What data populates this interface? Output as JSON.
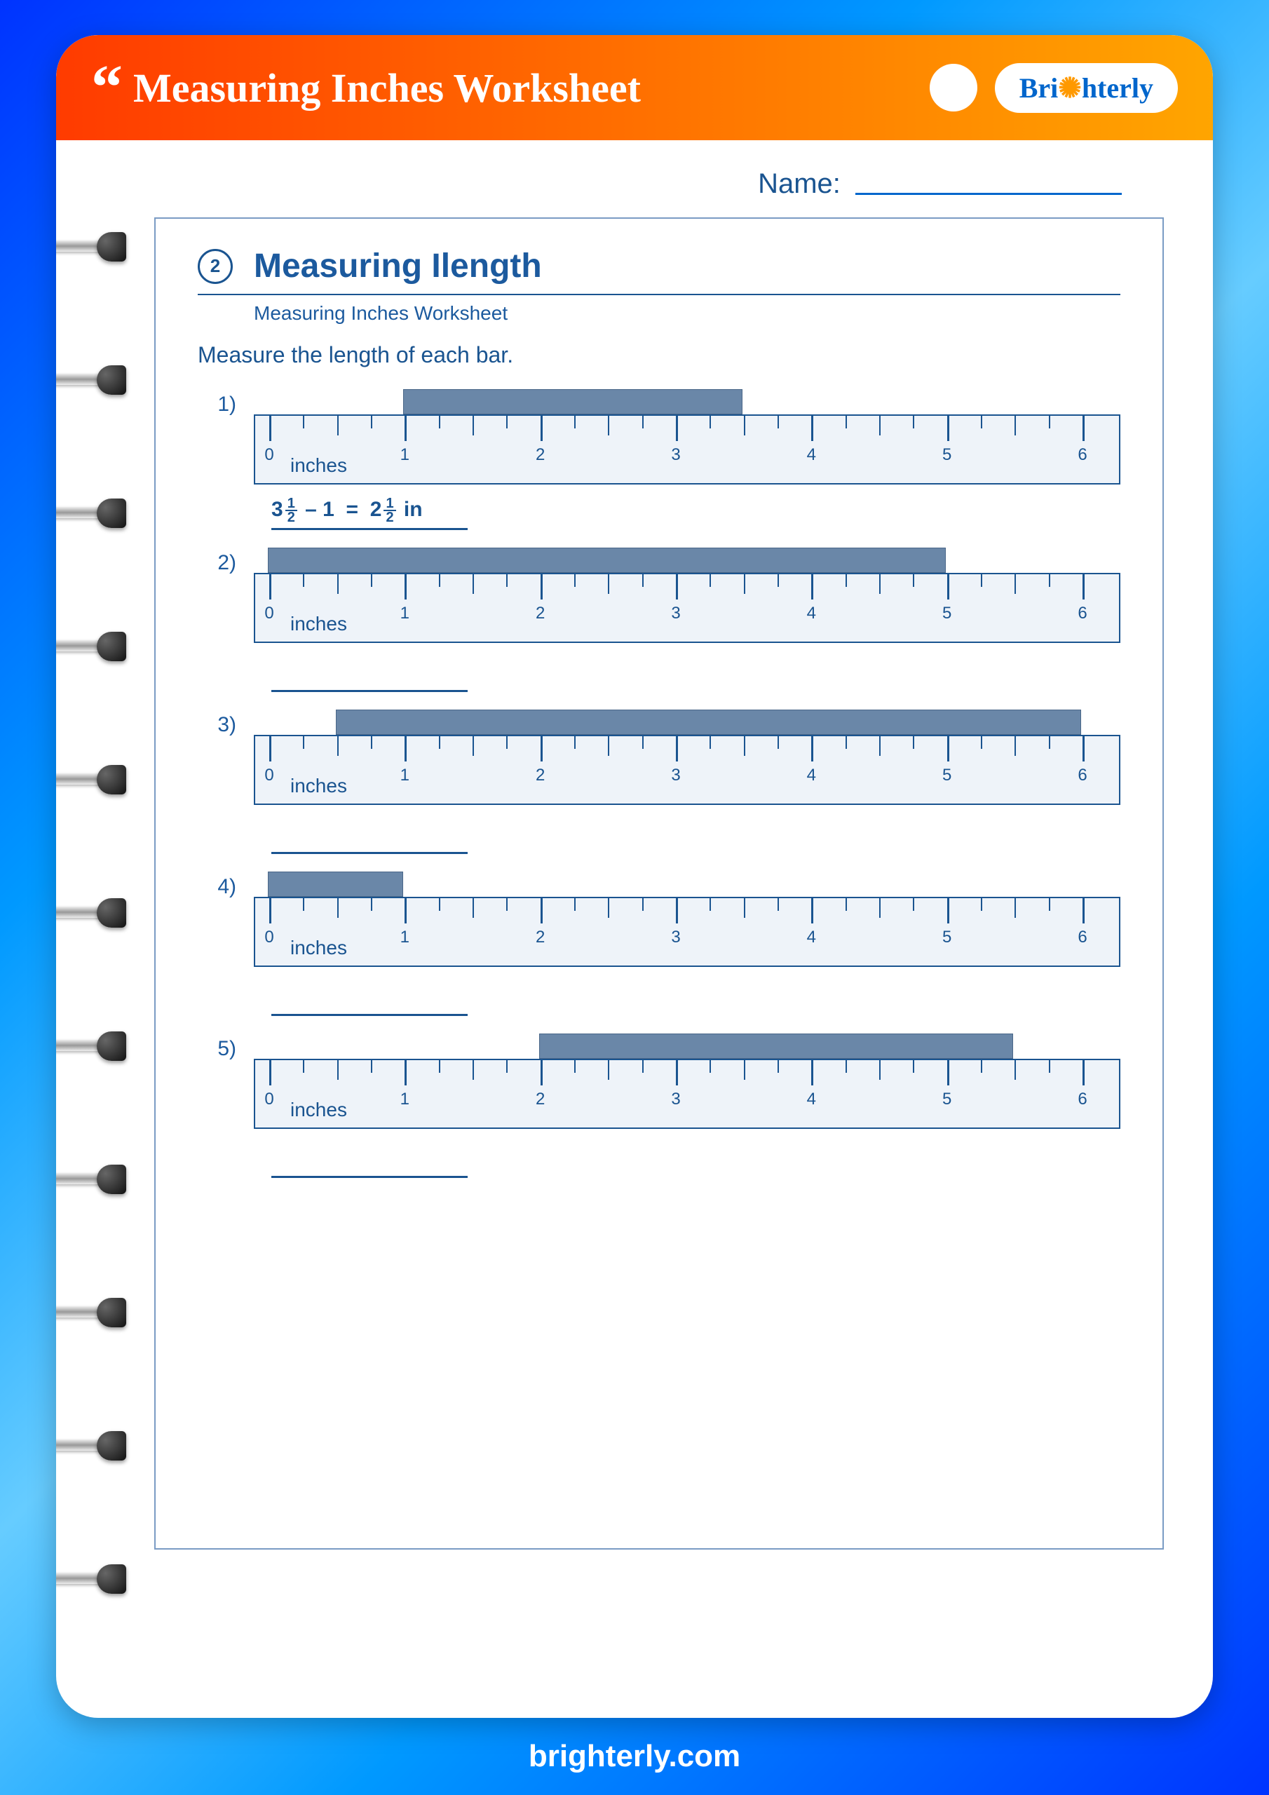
{
  "header": {
    "title": "Measuring Inches Worksheet",
    "brand": "Brighterly"
  },
  "name_label": "Name:",
  "section": {
    "number": "2",
    "title": "Measuring Ilength",
    "subtitle": "Measuring Inches Worksheet"
  },
  "instruction": "Measure the length of each bar.",
  "ruler": {
    "max_inches": 6,
    "labels": [
      "0",
      "1",
      "2",
      "3",
      "4",
      "5",
      "6"
    ],
    "unit_label": "inches",
    "background_color": "#eef3f9",
    "border_color": "#1a5490"
  },
  "bar_color": "#6a87a8",
  "problems": [
    {
      "num": "1)",
      "bar_start": 1.0,
      "bar_end": 3.5,
      "answered": true,
      "answer_parts": {
        "a_whole": "3",
        "a_num": "1",
        "a_den": "2",
        "minus": "– 1",
        "eq": "=",
        "b_whole": "2",
        "b_num": "1",
        "b_den": "2",
        "unit": "in"
      }
    },
    {
      "num": "2)",
      "bar_start": 0.0,
      "bar_end": 5.0,
      "answered": false
    },
    {
      "num": "3)",
      "bar_start": 0.5,
      "bar_end": 6.0,
      "answered": false
    },
    {
      "num": "4)",
      "bar_start": 0.0,
      "bar_end": 1.0,
      "answered": false
    },
    {
      "num": "5)",
      "bar_start": 2.0,
      "bar_end": 5.5,
      "answered": false
    }
  ],
  "footer": "brighterly.com",
  "spiral_count": 11,
  "colors": {
    "text": "#1a5490",
    "accent": "#1c5a9e",
    "header_grad_start": "#ff3b00",
    "header_grad_end": "#ffa500",
    "bg_grad_start": "#0033ff",
    "bg_grad_end": "#66ccff"
  }
}
